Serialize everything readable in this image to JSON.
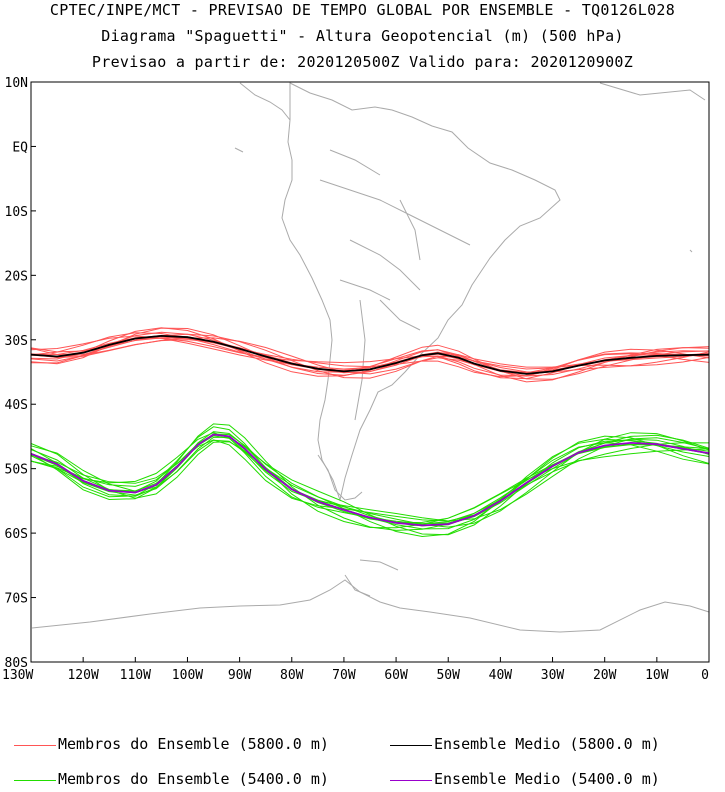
{
  "titles": {
    "line1": "CPTEC/INPE/MCT - PREVISAO DE TEMPO GLOBAL POR ENSEMBLE - TQ0126L028",
    "line2": "Diagrama \"Spaguetti\" - Altura Geopotencial (m) (500 hPa)",
    "line3": "Previsao a partir de: 2020120500Z  Valido para: 2020120900Z"
  },
  "axes": {
    "lat_labels": [
      "10N",
      "EQ",
      "10S",
      "20S",
      "30S",
      "40S",
      "50S",
      "60S",
      "70S",
      "80S"
    ],
    "lon_labels": [
      "130W",
      "120W",
      "110W",
      "100W",
      "90W",
      "80W",
      "70W",
      "60W",
      "50W",
      "40W",
      "30W",
      "20W",
      "10W",
      "0"
    ]
  },
  "legend": {
    "members_5800": "Membros do Ensemble (5800.0 m)",
    "mean_5800": "Ensemble Medio (5800.0 m)",
    "members_5400": "Membros do Ensemble (5400.0 m)",
    "mean_5400": "Ensemble Medio (5400.0 m)"
  },
  "colors": {
    "members_5800": "#ff5555",
    "mean_5800": "#000000",
    "members_5400": "#22dd00",
    "mean_5400": "#9900cc",
    "coastline": "#aaaaaa"
  },
  "map_data": {
    "lon_range": [
      -130,
      0
    ],
    "lat_range": [
      -80,
      10
    ],
    "mean_5800": [
      [
        -130,
        -32.3
      ],
      [
        -125,
        -32.6
      ],
      [
        -120,
        -32
      ],
      [
        -115,
        -30.8
      ],
      [
        -110,
        -29.8
      ],
      [
        -105,
        -29.4
      ],
      [
        -100,
        -29.6
      ],
      [
        -95,
        -30.3
      ],
      [
        -90,
        -31.4
      ],
      [
        -85,
        -32.6
      ],
      [
        -80,
        -33.7
      ],
      [
        -75,
        -34.5
      ],
      [
        -70,
        -34.9
      ],
      [
        -65,
        -34.6
      ],
      [
        -60,
        -33.6
      ],
      [
        -55,
        -32.4
      ],
      [
        -52,
        -32.1
      ],
      [
        -48,
        -32.8
      ],
      [
        -45,
        -33.7
      ],
      [
        -40,
        -34.8
      ],
      [
        -35,
        -35.3
      ],
      [
        -30,
        -34.9
      ],
      [
        -25,
        -34
      ],
      [
        -20,
        -33.2
      ],
      [
        -15,
        -32.8
      ],
      [
        -10,
        -32.5
      ],
      [
        -5,
        -32.4
      ],
      [
        0,
        -32.3
      ]
    ],
    "mean_5400": [
      [
        -130,
        -47.7
      ],
      [
        -125,
        -49.3
      ],
      [
        -120,
        -51.9
      ],
      [
        -115,
        -53.4
      ],
      [
        -110,
        -53.7
      ],
      [
        -106,
        -52.5
      ],
      [
        -102,
        -49.7
      ],
      [
        -98,
        -46.3
      ],
      [
        -95,
        -44.7
      ],
      [
        -92,
        -45
      ],
      [
        -89,
        -46.9
      ],
      [
        -85,
        -50.1
      ],
      [
        -80,
        -53.2
      ],
      [
        -75,
        -55.1
      ],
      [
        -70,
        -56.4
      ],
      [
        -65,
        -57.6
      ],
      [
        -60,
        -58.4
      ],
      [
        -55,
        -58.8
      ],
      [
        -50,
        -58.6
      ],
      [
        -45,
        -57.3
      ],
      [
        -40,
        -55
      ],
      [
        -35,
        -52.2
      ],
      [
        -30,
        -49.6
      ],
      [
        -25,
        -47.5
      ],
      [
        -20,
        -46.4
      ],
      [
        -15,
        -46
      ],
      [
        -10,
        -46.2
      ],
      [
        -5,
        -46.9
      ],
      [
        0,
        -47.6
      ]
    ]
  }
}
